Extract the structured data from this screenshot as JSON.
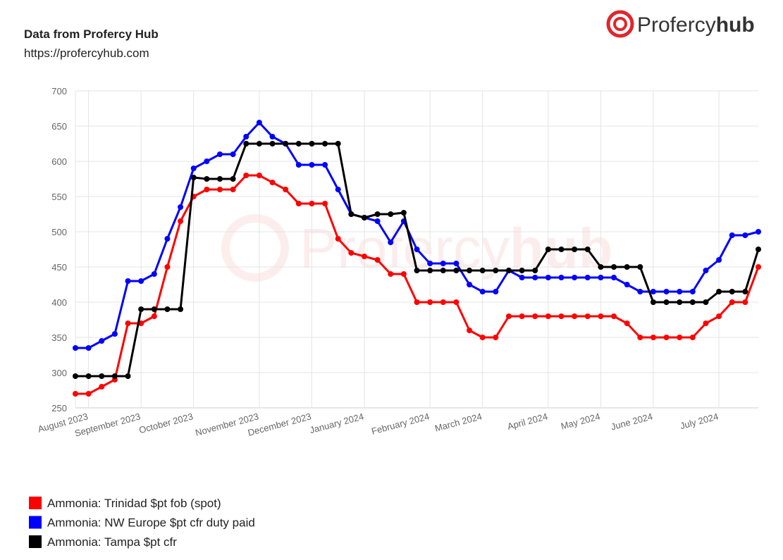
{
  "chart_data": {
    "type": "line",
    "title": "Data from Profercy Hub",
    "subtitle": "https://profercyhub.com",
    "logo": "Profercy",
    "logo_bold": "hub",
    "categories": [
      null,
      "August 2023",
      null,
      null,
      null,
      "September 2023",
      null,
      null,
      null,
      "October 2023",
      null,
      null,
      null,
      null,
      "November 2023",
      null,
      null,
      null,
      "December 2023",
      null,
      null,
      null,
      "January 2024",
      null,
      null,
      null,
      null,
      "February 2024",
      null,
      null,
      null,
      "March 2024",
      null,
      null,
      null,
      null,
      "April 2024",
      null,
      null,
      null,
      "May 2024",
      null,
      null,
      null,
      "June 2024",
      null,
      null,
      null,
      null,
      "July 2024",
      null,
      null,
      null
    ],
    "series": [
      {
        "name": "Ammonia: Trinidad $pt fob (spot)",
        "color": "#ff0000",
        "values": [
          270,
          270,
          280,
          290,
          370,
          370,
          380,
          450,
          515,
          550,
          560,
          560,
          560,
          580,
          580,
          570,
          560,
          540,
          540,
          540,
          490,
          470,
          465,
          460,
          440,
          440,
          400,
          400,
          400,
          400,
          360,
          350,
          350,
          380,
          380,
          380,
          380,
          380,
          380,
          380,
          380,
          380,
          370,
          350,
          350,
          350,
          350,
          350,
          370,
          380,
          400,
          400,
          450
        ]
      },
      {
        "name": "Ammonia: NW Europe $pt cfr duty paid",
        "color": "#0000ff",
        "values": [
          335,
          335,
          345,
          355,
          430,
          430,
          440,
          490,
          535,
          590,
          600,
          610,
          610,
          635,
          655,
          635,
          625,
          595,
          595,
          595,
          560,
          525,
          520,
          515,
          485,
          515,
          475,
          455,
          455,
          455,
          425,
          415,
          415,
          445,
          435,
          435,
          435,
          435,
          435,
          435,
          435,
          435,
          425,
          415,
          415,
          415,
          415,
          415,
          445,
          460,
          495,
          495,
          500
        ]
      },
      {
        "name": "Ammonia: Tampa $pt cfr",
        "color": "#000000",
        "values": [
          295,
          295,
          295,
          295,
          295,
          390,
          390,
          390,
          390,
          577,
          575,
          575,
          575,
          625,
          625,
          625,
          625,
          625,
          625,
          625,
          625,
          525,
          520,
          525,
          525,
          527,
          445,
          445,
          445,
          445,
          445,
          445,
          445,
          445,
          445,
          445,
          475,
          475,
          475,
          475,
          450,
          450,
          450,
          450,
          400,
          400,
          400,
          400,
          400,
          415,
          415,
          415,
          475
        ]
      }
    ],
    "ylim": [
      250,
      700
    ],
    "yticks": [
      250,
      300,
      350,
      400,
      450,
      500,
      550,
      600,
      650,
      700
    ],
    "grid": true
  }
}
